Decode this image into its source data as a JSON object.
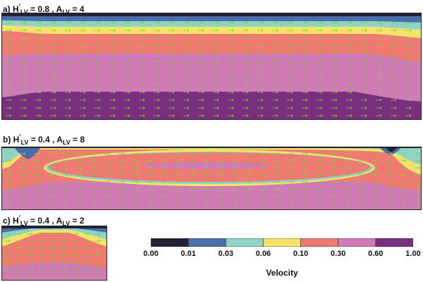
{
  "panels": [
    {
      "id": "a",
      "prefix": "a)",
      "h_label": "H",
      "h_sub": "LV",
      "h_value": "0.8",
      "a_label": "A",
      "a_sub": "LV",
      "a_value": "4"
    },
    {
      "id": "b",
      "prefix": "b)",
      "h_label": "H",
      "h_sub": "LV",
      "h_value": "0.4",
      "a_label": "A",
      "a_sub": "LV",
      "a_value": "8"
    },
    {
      "id": "c",
      "prefix": "c)",
      "h_label": "H",
      "h_sub": "LV",
      "h_value": "0.4",
      "a_label": "A",
      "a_sub": "LV",
      "a_value": "2"
    }
  ],
  "colorbar": {
    "title": "Velocity",
    "ticks": [
      "0.00",
      "0.01",
      "0.03",
      "0.06",
      "0.10",
      "0.30",
      "0.60",
      "1.00"
    ],
    "colors": [
      "#232338",
      "#4a6ea8",
      "#8fd3c4",
      "#f2e46a",
      "#ee7a72",
      "#d07ab6",
      "#7a2f7e"
    ]
  },
  "arrow_color": "#7fcf3c"
}
